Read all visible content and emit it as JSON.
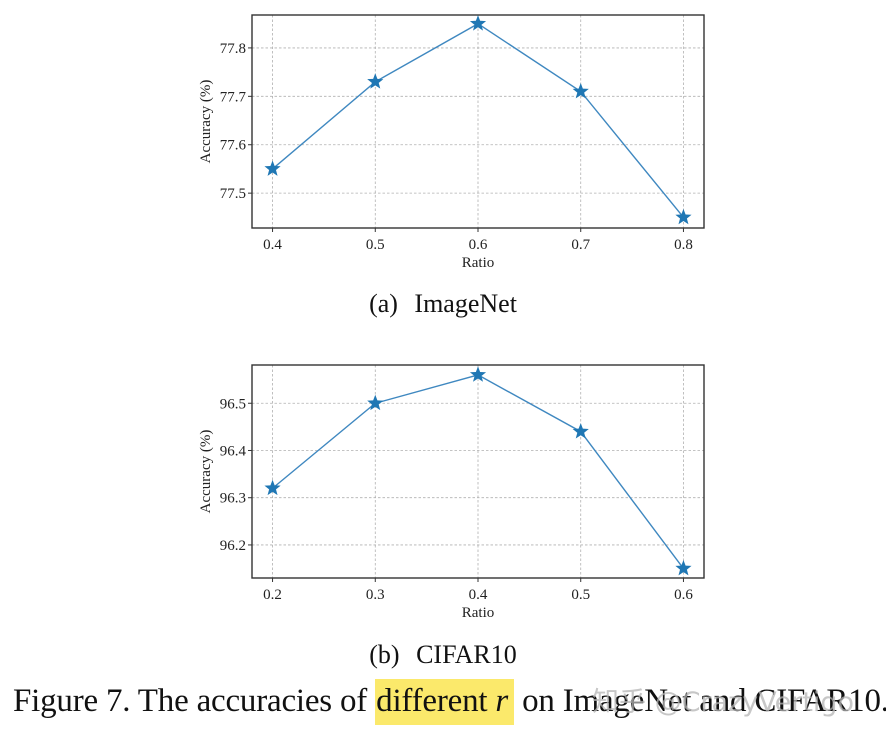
{
  "figure": {
    "caption_prefix": "Figure 7. The accuracies of ",
    "caption_highlight": "different ",
    "caption_variable": "r",
    "caption_suffix": " on ImageNet and CIFAR10.",
    "highlight_color": "#fbe96b",
    "watermark": "知乎 @CrazyVertigo"
  },
  "subfigures": [
    {
      "label": "(a)",
      "title": "ImageNet"
    },
    {
      "label": "(b)",
      "title": "CIFAR10"
    }
  ],
  "style": {
    "series_color": "#1f77b4",
    "line_color": "#3f88c0",
    "grid_color": "#b0b0b0",
    "frame_color": "#333333"
  },
  "chart_data": [
    {
      "type": "line",
      "title": "(a) ImageNet",
      "xlabel": "Ratio",
      "ylabel": "Accuracy (%)",
      "x": [
        0.4,
        0.5,
        0.6,
        0.7,
        0.8
      ],
      "xticks": [
        "0.4",
        "0.5",
        "0.6",
        "0.7",
        "0.8"
      ],
      "series": [
        {
          "name": "ImageNet",
          "marker": "star",
          "values": [
            77.55,
            77.73,
            77.85,
            77.71,
            77.45
          ]
        }
      ],
      "yticks": [
        77.5,
        77.6,
        77.7,
        77.8
      ],
      "ytick_labels": [
        "77.5",
        "77.6",
        "77.7",
        "77.8"
      ],
      "ylim": [
        77.428,
        77.868
      ],
      "xlim": [
        0.38,
        0.82
      ],
      "grid": true,
      "legend": null
    },
    {
      "type": "line",
      "title": "(b) CIFAR10",
      "xlabel": "Ratio",
      "ylabel": "Accuracy (%)",
      "x": [
        0.2,
        0.3,
        0.4,
        0.5,
        0.6
      ],
      "xticks": [
        "0.2",
        "0.3",
        "0.4",
        "0.5",
        "0.6"
      ],
      "series": [
        {
          "name": "CIFAR10",
          "marker": "star",
          "values": [
            96.32,
            96.5,
            96.56,
            96.44,
            96.15
          ]
        }
      ],
      "yticks": [
        96.2,
        96.3,
        96.4,
        96.5
      ],
      "ytick_labels": [
        "96.2",
        "96.3",
        "96.4",
        "96.5"
      ],
      "ylim": [
        96.13,
        96.581
      ],
      "xlim": [
        0.18,
        0.62
      ],
      "grid": true,
      "legend": null
    }
  ]
}
